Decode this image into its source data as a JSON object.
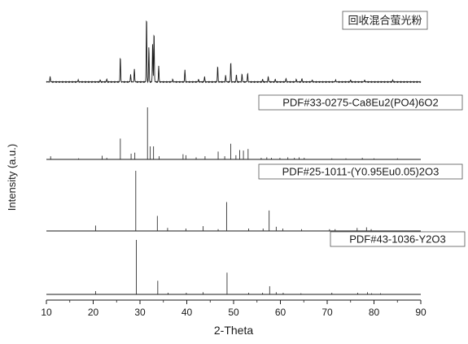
{
  "chart_data": {
    "type": "line",
    "xlabel": "2-Theta",
    "ylabel": "Intensity (a.u.)",
    "xlim": [
      10,
      90
    ],
    "x_ticks": [
      "10",
      "20",
      "30",
      "40",
      "50",
      "60",
      "70",
      "80",
      "90"
    ],
    "grid": false,
    "panels": [
      {
        "name": "回收混合萤光粉",
        "kind": "pattern",
        "ymax": 100,
        "peaks": [
          {
            "x": 10.8,
            "y": 8
          },
          {
            "x": 16.8,
            "y": 3
          },
          {
            "x": 21.5,
            "y": 3
          },
          {
            "x": 22.9,
            "y": 4
          },
          {
            "x": 25.8,
            "y": 38
          },
          {
            "x": 28.0,
            "y": 11
          },
          {
            "x": 28.8,
            "y": 20
          },
          {
            "x": 31.4,
            "y": 100
          },
          {
            "x": 31.9,
            "y": 53
          },
          {
            "x": 32.7,
            "y": 58
          },
          {
            "x": 33.0,
            "y": 76
          },
          {
            "x": 34.0,
            "y": 24
          },
          {
            "x": 37.0,
            "y": 4
          },
          {
            "x": 39.6,
            "y": 18
          },
          {
            "x": 42.5,
            "y": 4
          },
          {
            "x": 43.8,
            "y": 8
          },
          {
            "x": 46.6,
            "y": 24
          },
          {
            "x": 48.3,
            "y": 10
          },
          {
            "x": 49.4,
            "y": 30
          },
          {
            "x": 50.6,
            "y": 11
          },
          {
            "x": 51.8,
            "y": 12
          },
          {
            "x": 53.0,
            "y": 13
          },
          {
            "x": 56.2,
            "y": 4
          },
          {
            "x": 57.4,
            "y": 8
          },
          {
            "x": 58.9,
            "y": 4
          },
          {
            "x": 61.2,
            "y": 5
          },
          {
            "x": 63.4,
            "y": 4
          },
          {
            "x": 64.6,
            "y": 5
          },
          {
            "x": 66.8,
            "y": 3
          },
          {
            "x": 71.8,
            "y": 3
          },
          {
            "x": 75.0,
            "y": 3
          },
          {
            "x": 78.0,
            "y": 3
          },
          {
            "x": 84.0,
            "y": 3
          }
        ]
      },
      {
        "name": "PDF#33-0275-Ca8Eu2(PO4)6O2",
        "kind": "sticks",
        "ymax": 100,
        "peaks": [
          {
            "x": 10.9,
            "y": 6
          },
          {
            "x": 16.9,
            "y": 2
          },
          {
            "x": 21.9,
            "y": 7
          },
          {
            "x": 22.9,
            "y": 3
          },
          {
            "x": 25.8,
            "y": 40
          },
          {
            "x": 28.1,
            "y": 11
          },
          {
            "x": 28.9,
            "y": 13
          },
          {
            "x": 31.6,
            "y": 100
          },
          {
            "x": 32.2,
            "y": 25
          },
          {
            "x": 32.9,
            "y": 25
          },
          {
            "x": 34.1,
            "y": 6
          },
          {
            "x": 39.2,
            "y": 10
          },
          {
            "x": 39.8,
            "y": 8
          },
          {
            "x": 42.0,
            "y": 4
          },
          {
            "x": 43.9,
            "y": 6
          },
          {
            "x": 46.7,
            "y": 15
          },
          {
            "x": 48.1,
            "y": 6
          },
          {
            "x": 49.4,
            "y": 30
          },
          {
            "x": 50.5,
            "y": 8
          },
          {
            "x": 51.3,
            "y": 18
          },
          {
            "x": 52.1,
            "y": 17
          },
          {
            "x": 53.1,
            "y": 20
          },
          {
            "x": 55.9,
            "y": 3
          },
          {
            "x": 57.1,
            "y": 4
          },
          {
            "x": 58.1,
            "y": 3
          },
          {
            "x": 59.9,
            "y": 3
          },
          {
            "x": 61.6,
            "y": 4
          },
          {
            "x": 63.0,
            "y": 3
          },
          {
            "x": 64.0,
            "y": 4
          },
          {
            "x": 65.1,
            "y": 3
          },
          {
            "x": 71.0,
            "y": 2
          },
          {
            "x": 74.0,
            "y": 2
          },
          {
            "x": 77.5,
            "y": 3
          },
          {
            "x": 80.0,
            "y": 2
          },
          {
            "x": 85.0,
            "y": 2
          }
        ]
      },
      {
        "name": "PDF#25-1011-(Y0.95Eu0.05)2O3",
        "kind": "sticks",
        "ymax": 100,
        "peaks": [
          {
            "x": 20.5,
            "y": 9
          },
          {
            "x": 29.1,
            "y": 100
          },
          {
            "x": 33.7,
            "y": 25
          },
          {
            "x": 35.9,
            "y": 5
          },
          {
            "x": 39.8,
            "y": 4
          },
          {
            "x": 43.5,
            "y": 8
          },
          {
            "x": 46.7,
            "y": 3
          },
          {
            "x": 48.5,
            "y": 48
          },
          {
            "x": 53.2,
            "y": 4
          },
          {
            "x": 56.3,
            "y": 4
          },
          {
            "x": 57.6,
            "y": 34
          },
          {
            "x": 59.1,
            "y": 7
          },
          {
            "x": 60.5,
            "y": 4
          },
          {
            "x": 64.5,
            "y": 3
          },
          {
            "x": 70.5,
            "y": 3
          },
          {
            "x": 71.7,
            "y": 3
          },
          {
            "x": 76.4,
            "y": 5
          },
          {
            "x": 78.4,
            "y": 6
          },
          {
            "x": 79.4,
            "y": 3
          }
        ]
      },
      {
        "name": "PDF#43-1036-Y2O3",
        "kind": "sticks",
        "ymax": 100,
        "peaks": [
          {
            "x": 20.5,
            "y": 6
          },
          {
            "x": 29.2,
            "y": 100
          },
          {
            "x": 33.8,
            "y": 25
          },
          {
            "x": 36.0,
            "y": 3
          },
          {
            "x": 39.9,
            "y": 3
          },
          {
            "x": 43.5,
            "y": 4
          },
          {
            "x": 48.6,
            "y": 40
          },
          {
            "x": 53.2,
            "y": 3
          },
          {
            "x": 56.2,
            "y": 3
          },
          {
            "x": 57.7,
            "y": 15
          },
          {
            "x": 59.1,
            "y": 4
          },
          {
            "x": 60.6,
            "y": 3
          },
          {
            "x": 64.4,
            "y": 2
          },
          {
            "x": 71.0,
            "y": 3
          },
          {
            "x": 76.5,
            "y": 3
          },
          {
            "x": 78.6,
            "y": 4
          },
          {
            "x": 79.5,
            "y": 2
          },
          {
            "x": 81.4,
            "y": 2
          }
        ]
      }
    ]
  }
}
